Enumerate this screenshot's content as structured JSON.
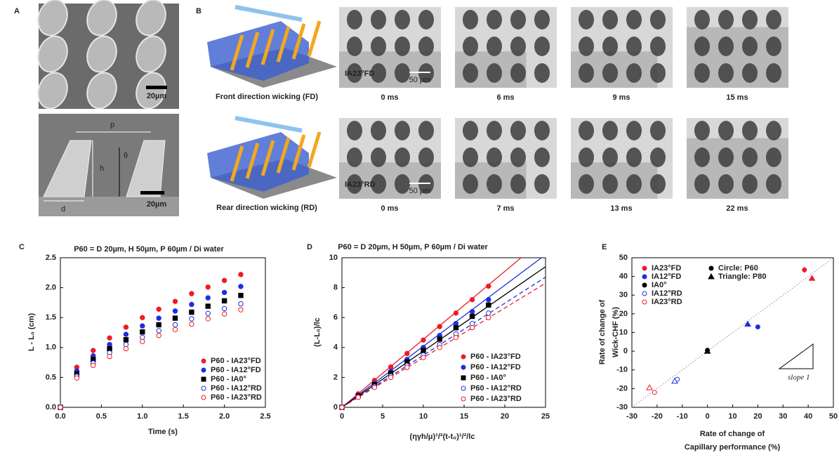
{
  "panel_a": {
    "label": "A",
    "scale_bars": [
      "20µm",
      "20µm"
    ],
    "dims": {
      "p": "p",
      "h": "h",
      "theta": "θ",
      "d": "d"
    }
  },
  "panel_b": {
    "label": "B",
    "rows": [
      {
        "caption": "Front direction wicking (FD)",
        "sample": "IA23°FD",
        "scale": "50 µm",
        "times": [
          "0 ms",
          "6 ms",
          "9 ms",
          "15 ms"
        ]
      },
      {
        "caption": "Rear direction wicking (RD)",
        "sample": "IA23°RD",
        "scale": "50 µm",
        "times": [
          "0 ms",
          "7 ms",
          "13 ms",
          "22 ms"
        ]
      }
    ]
  },
  "chart_data": [
    {
      "type": "scatter",
      "panel_label": "C",
      "subtitle": "P60 = D 20µm, H 50µm, P 60µm / Di water",
      "x_label": "Time (s)",
      "y_label": "L - L₀ (cm)",
      "x": [
        0,
        0.2,
        0.4,
        0.6,
        0.8,
        1.0,
        1.2,
        1.4,
        1.6,
        1.8,
        2.0,
        2.2
      ],
      "series": [
        {
          "name": "P60 - IA23°FD",
          "color": "#ee1c25",
          "marker": "circle",
          "filled": true,
          "values": [
            0,
            0.67,
            0.95,
            1.16,
            1.34,
            1.5,
            1.64,
            1.77,
            1.9,
            2.01,
            2.12,
            2.22
          ]
        },
        {
          "name": "P60 - IA12°FD",
          "color": "#1c2fe0",
          "marker": "circle",
          "filled": true,
          "values": [
            0,
            0.61,
            0.86,
            1.05,
            1.22,
            1.36,
            1.49,
            1.61,
            1.72,
            1.83,
            1.92,
            2.02
          ]
        },
        {
          "name": "P60 - IA0°",
          "color": "#000000",
          "marker": "square",
          "filled": true,
          "values": [
            0,
            0.56,
            0.8,
            0.98,
            1.13,
            1.26,
            1.38,
            1.49,
            1.59,
            1.69,
            1.78,
            1.87
          ]
        },
        {
          "name": "P60 - IA12°RD",
          "color": "#1c2fe0",
          "marker": "circle",
          "filled": false,
          "values": [
            0,
            0.52,
            0.74,
            0.91,
            1.05,
            1.17,
            1.28,
            1.38,
            1.48,
            1.57,
            1.65,
            1.73
          ]
        },
        {
          "name": "P60 - IA23°RD",
          "color": "#ee1c25",
          "marker": "circle",
          "filled": false,
          "values": [
            0,
            0.49,
            0.7,
            0.85,
            0.98,
            1.1,
            1.2,
            1.3,
            1.39,
            1.48,
            1.56,
            1.63
          ]
        }
      ],
      "xlim": [
        0,
        2.5
      ],
      "xticks": [
        {
          "value": 0,
          "label": "0.0"
        },
        0.5,
        {
          "value": 1,
          "label": "1.0"
        },
        1.5,
        {
          "value": 2,
          "label": "2.0"
        },
        2.5
      ],
      "ylim": [
        0,
        2.5
      ],
      "yticks": [
        {
          "value": 0,
          "label": "0.0"
        },
        0.5,
        {
          "value": 1,
          "label": "1.0"
        },
        1.5,
        {
          "value": 2,
          "label": "2.0"
        },
        2.5
      ],
      "legend": "lower right"
    },
    {
      "type": "scatter",
      "panel_label": "D",
      "subtitle": "P60 = D 20µm, H 50µm, P 60µm / Di water",
      "x_label": "(ηγh/μ)¹/²(t-t₀)¹/²/lc",
      "y_label": "(L-L₀)/lc",
      "x": [
        0,
        2,
        4,
        6,
        8,
        10,
        12,
        14,
        16,
        18
      ],
      "series": [
        {
          "name": "P60 - IA23°FD",
          "color": "#ee1c25",
          "marker": "circle",
          "filled": true,
          "values": [
            0,
            0.9,
            1.8,
            2.7,
            3.6,
            4.5,
            5.4,
            6.3,
            7.2,
            8.1
          ]
        },
        {
          "name": "P60 - IA12°FD",
          "color": "#1c2fe0",
          "marker": "circle",
          "filled": true,
          "values": [
            0,
            0.8,
            1.6,
            2.4,
            3.2,
            4.0,
            4.8,
            5.6,
            6.4,
            7.2
          ]
        },
        {
          "name": "P60 - IA0°",
          "color": "#000000",
          "marker": "square",
          "filled": true,
          "values": [
            0,
            0.76,
            1.52,
            2.28,
            3.04,
            3.8,
            4.56,
            5.32,
            6.08,
            6.84
          ]
        },
        {
          "name": "P60 - IA12°RD",
          "color": "#1c2fe0",
          "marker": "circle",
          "filled": false,
          "values": [
            0,
            0.7,
            1.4,
            2.1,
            2.8,
            3.5,
            4.2,
            4.9,
            5.6,
            6.3
          ]
        },
        {
          "name": "P60 - IA23°RD",
          "color": "#ee1c25",
          "marker": "circle",
          "filled": false,
          "values": [
            0,
            0.67,
            1.33,
            2.0,
            2.67,
            3.33,
            4.0,
            4.67,
            5.33,
            6.0
          ]
        }
      ],
      "fit_lines": [
        {
          "color": "#ee1c25",
          "dashed": false,
          "x": [
            0,
            22
          ],
          "y": [
            0,
            10
          ]
        },
        {
          "color": "#1c2fe0",
          "dashed": false,
          "x": [
            0,
            24.5
          ],
          "y": [
            0,
            10
          ]
        },
        {
          "color": "#000000",
          "dashed": false,
          "x": [
            0,
            25
          ],
          "y": [
            0,
            9.4
          ]
        },
        {
          "color": "#1c2fe0",
          "dashed": true,
          "x": [
            0,
            25
          ],
          "y": [
            0,
            8.7
          ]
        },
        {
          "color": "#ee1c25",
          "dashed": true,
          "x": [
            0,
            25
          ],
          "y": [
            0,
            8.3
          ]
        }
      ],
      "xlim": [
        0,
        25
      ],
      "xticks": [
        0,
        5,
        10,
        15,
        20,
        25
      ],
      "ylim": [
        0,
        10
      ],
      "yticks": [
        0,
        2,
        4,
        6,
        8,
        10
      ],
      "legend": "lower right"
    },
    {
      "type": "scatter",
      "panel_label": "E",
      "x_label": [
        "Rate of change of",
        "Capillary performance (%)"
      ],
      "y_label": [
        "Rate of change of",
        "Wick-CHF  (%)"
      ],
      "markers": [
        "circle",
        "triangle"
      ],
      "marker_legend": [
        "Circle: P60",
        "Triangle: P80"
      ],
      "series": [
        {
          "name": "IA23°FD",
          "color": "#ee1c25",
          "filled": true,
          "x": [
            38.5,
            41.5
          ],
          "values": [
            43.5,
            39
          ],
          "errors": [
            1.5,
            null
          ]
        },
        {
          "name": "IA12°FD",
          "color": "#1c2fe0",
          "filled": true,
          "x": [
            20,
            16
          ],
          "values": [
            13,
            14.5
          ]
        },
        {
          "name": "IA0°",
          "color": "#000000",
          "filled": true,
          "x": [
            0,
            0
          ],
          "values": [
            0.5,
            0
          ]
        },
        {
          "name": "IA12°RD",
          "color": "#1c2fe0",
          "filled": false,
          "x": [
            -12,
            -13
          ],
          "values": [
            -15,
            -16
          ]
        },
        {
          "name": "IA23°RD",
          "color": "#ee1c25",
          "filled": false,
          "x": [
            -21,
            -23
          ],
          "values": [
            -22,
            -19.5
          ]
        }
      ],
      "reference_line": {
        "x": [
          -30,
          50
        ],
        "y": [
          -30,
          50
        ]
      },
      "annotation": "slope 1",
      "xlim": [
        -30,
        50
      ],
      "xticks": [
        -30,
        -20,
        -10,
        0,
        10,
        20,
        30,
        40,
        50
      ],
      "ylim": [
        -30,
        50
      ],
      "yticks": [
        -30,
        -20,
        -10,
        0,
        10,
        20,
        30,
        40,
        50
      ],
      "legend": "upper left"
    }
  ]
}
